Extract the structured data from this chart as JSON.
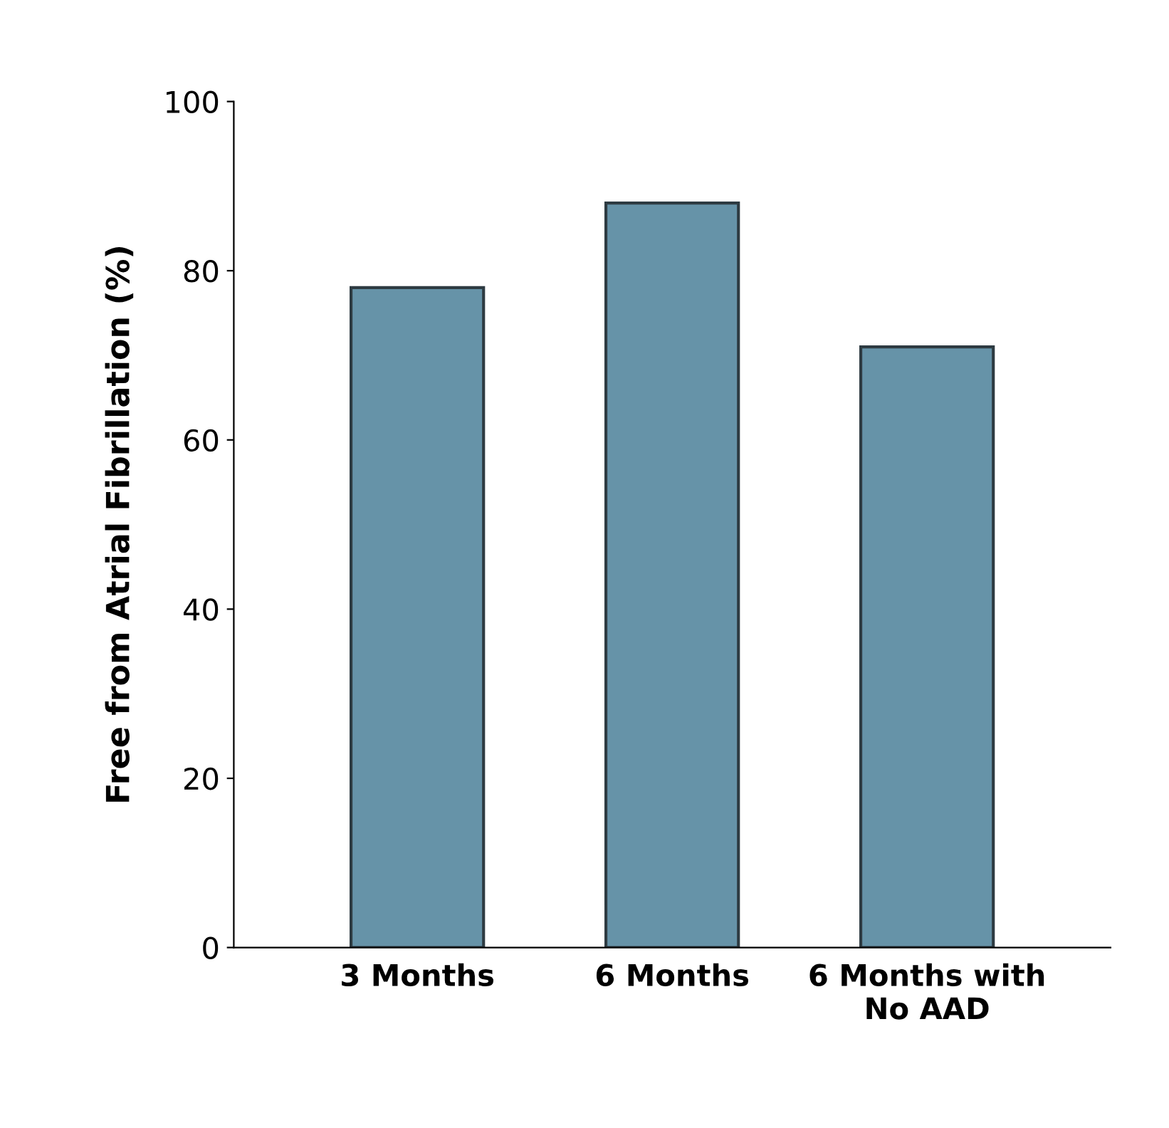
{
  "chart_data": {
    "type": "bar",
    "ylabel": "Free from Atrial Fibrillation (%)",
    "categories": [
      "3 Months",
      "6 Months",
      "6 Months with\nNo AAD"
    ],
    "values": [
      78,
      88,
      71
    ],
    "color": "#6693a8",
    "ylim": [
      0,
      100
    ],
    "yticks": [
      0,
      20,
      40,
      60,
      80,
      100
    ],
    "grid": false
  }
}
